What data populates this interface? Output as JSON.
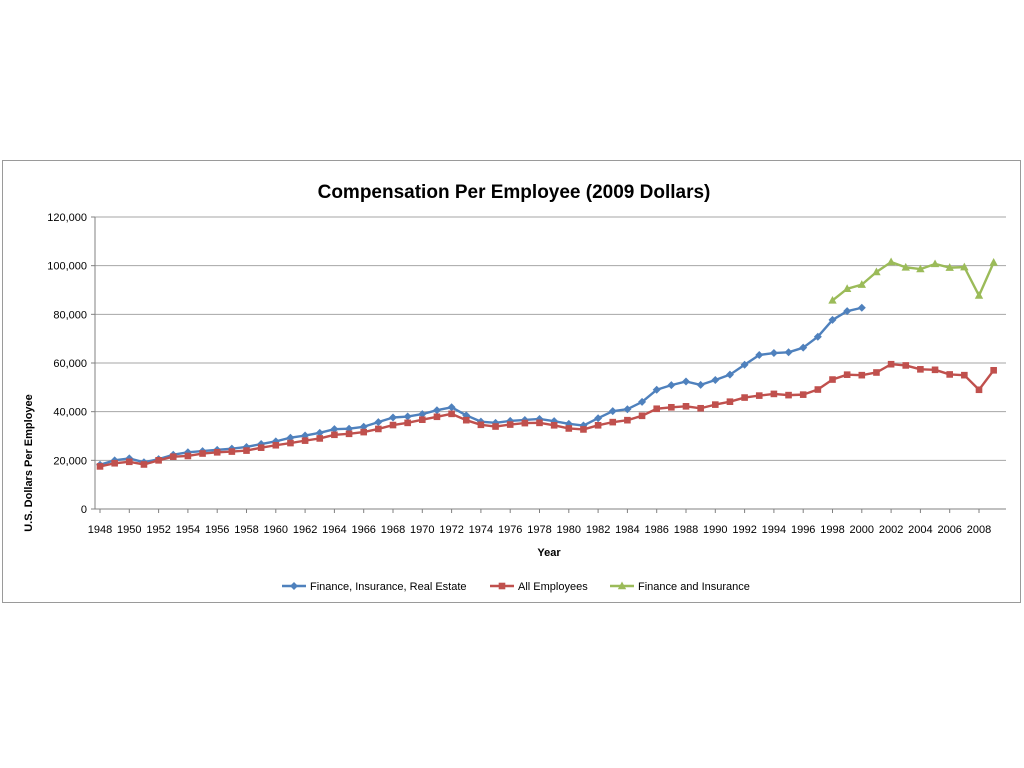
{
  "chart_data": {
    "type": "line",
    "title": "Compensation Per Employee (2009 Dollars)",
    "xlabel": "Year",
    "ylabel": "U.S. Dollars Per Employee",
    "ylim": [
      0,
      120000
    ],
    "y_ticks": [
      "0",
      "20,000",
      "40,000",
      "60,000",
      "80,000",
      "100,000",
      "120,000"
    ],
    "y_tick_values": [
      0,
      20000,
      40000,
      60000,
      80000,
      100000,
      120000
    ],
    "x_ticks": [
      "1948",
      "1950",
      "1952",
      "1954",
      "1956",
      "1958",
      "1960",
      "1962",
      "1964",
      "1966",
      "1968",
      "1970",
      "1972",
      "1974",
      "1976",
      "1978",
      "1980",
      "1982",
      "1984",
      "1986",
      "1988",
      "1990",
      "1992",
      "1994",
      "1996",
      "1998",
      "2000",
      "2002",
      "2004",
      "2006",
      "2008"
    ],
    "xlim": [
      1948,
      2009
    ],
    "grid": true,
    "legend_position": "bottom",
    "series": [
      {
        "name": "Finance, Insurance, Real Estate",
        "color": "#4f81bd",
        "marker": "diamond",
        "x": [
          1948,
          1949,
          1950,
          1951,
          1952,
          1953,
          1954,
          1955,
          1956,
          1957,
          1958,
          1959,
          1960,
          1961,
          1962,
          1963,
          1964,
          1965,
          1966,
          1967,
          1968,
          1969,
          1970,
          1971,
          1972,
          1973,
          1974,
          1975,
          1976,
          1977,
          1978,
          1979,
          1980,
          1981,
          1982,
          1983,
          1984,
          1985,
          1986,
          1987,
          1988,
          1989,
          1990,
          1991,
          1992,
          1993,
          1994,
          1995,
          1996,
          1997,
          1998,
          1999,
          2000
        ],
        "values": [
          18200,
          20000,
          20800,
          19200,
          20500,
          22300,
          23300,
          23800,
          24300,
          24800,
          25500,
          26700,
          27800,
          29300,
          30200,
          31300,
          32800,
          33000,
          33800,
          35700,
          37600,
          38000,
          39000,
          40600,
          41800,
          38500,
          35900,
          35400,
          36200,
          36600,
          37000,
          36100,
          35000,
          34300,
          37300,
          40200,
          41000,
          44000,
          49000,
          50900,
          52400,
          51000,
          53000,
          55200,
          59300,
          63300,
          64100,
          64400,
          66300,
          70800,
          77700,
          81300,
          82700
        ]
      },
      {
        "name": "All Employees",
        "color": "#c0504d",
        "marker": "square",
        "x": [
          1948,
          1949,
          1950,
          1951,
          1952,
          1953,
          1954,
          1955,
          1956,
          1957,
          1958,
          1959,
          1960,
          1961,
          1962,
          1963,
          1964,
          1965,
          1966,
          1967,
          1968,
          1969,
          1970,
          1971,
          1972,
          1973,
          1974,
          1975,
          1976,
          1977,
          1978,
          1979,
          1980,
          1981,
          1982,
          1983,
          1984,
          1985,
          1986,
          1987,
          1988,
          1989,
          1990,
          1991,
          1992,
          1993,
          1994,
          1995,
          1996,
          1997,
          1998,
          1999,
          2000,
          2001,
          2002,
          2003,
          2004,
          2005,
          2006,
          2007,
          2008,
          2009
        ],
        "values": [
          17500,
          18800,
          19400,
          18300,
          20000,
          21500,
          21800,
          22800,
          23300,
          23600,
          24000,
          25200,
          26200,
          27100,
          28100,
          29000,
          30500,
          30900,
          31600,
          32900,
          34500,
          35400,
          36700,
          37900,
          39100,
          36500,
          34600,
          33900,
          34700,
          35300,
          35400,
          34400,
          33100,
          32700,
          34400,
          35700,
          36500,
          38300,
          41200,
          41800,
          42200,
          41400,
          42900,
          44100,
          45800,
          46600,
          47300,
          46800,
          47000,
          49100,
          53200,
          55200,
          55000,
          56100,
          59500,
          59000,
          57400,
          57200,
          55300,
          55000,
          49000,
          57000
        ]
      },
      {
        "name": "Finance and Insurance",
        "color": "#9bbb59",
        "marker": "triangle",
        "x": [
          1998,
          1999,
          2000,
          2001,
          2002,
          2003,
          2004,
          2005,
          2006,
          2007,
          2008,
          2009
        ],
        "values": [
          85700,
          90500,
          92200,
          97400,
          101500,
          99300,
          98600,
          100700,
          99200,
          99400,
          87700,
          101300
        ]
      }
    ]
  }
}
